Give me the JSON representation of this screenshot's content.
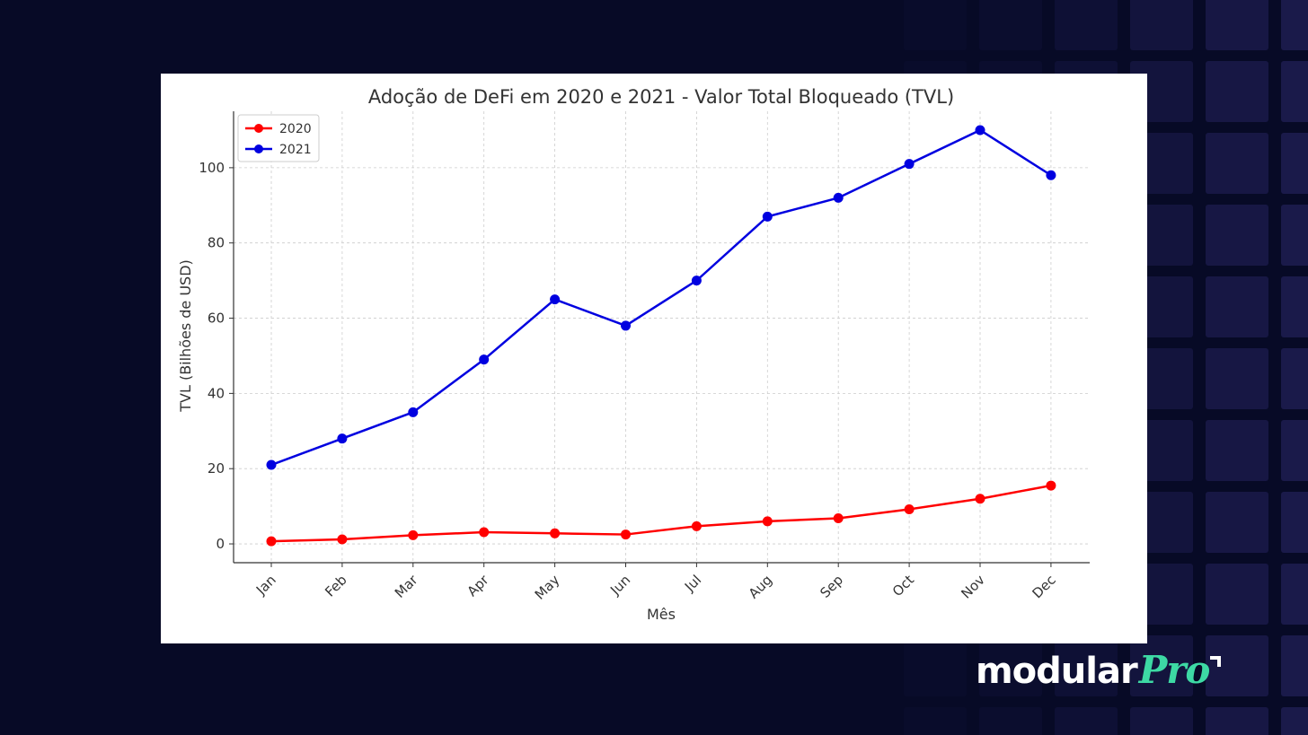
{
  "brand": {
    "word": "modular",
    "pro": "Pro",
    "pro_color": "#3dd9a4",
    "background": "#070a26",
    "tile_color": "#1a1a4a"
  },
  "chart_data": {
    "type": "line",
    "title": "Adoção de DeFi em 2020 e 2021 - Valor Total Bloqueado (TVL)",
    "xlabel": "Mês",
    "ylabel": "TVL (Bilhões de USD)",
    "categories": [
      "Jan",
      "Feb",
      "Mar",
      "Apr",
      "May",
      "Jun",
      "Jul",
      "Aug",
      "Sep",
      "Oct",
      "Nov",
      "Dec"
    ],
    "yticks": [
      0,
      20,
      40,
      60,
      80,
      100
    ],
    "ylim": [
      -5,
      115
    ],
    "grid": true,
    "legend_position": "top-left",
    "series": [
      {
        "name": "2020",
        "color": "#ff0000",
        "values": [
          0.7,
          1.2,
          2.3,
          3.1,
          2.8,
          2.5,
          4.7,
          6.0,
          6.8,
          9.2,
          12.0,
          15.5
        ]
      },
      {
        "name": "2021",
        "color": "#0000e0",
        "values": [
          21,
          28,
          35,
          49,
          65,
          58,
          70,
          87,
          92,
          101,
          110,
          98
        ]
      }
    ]
  }
}
